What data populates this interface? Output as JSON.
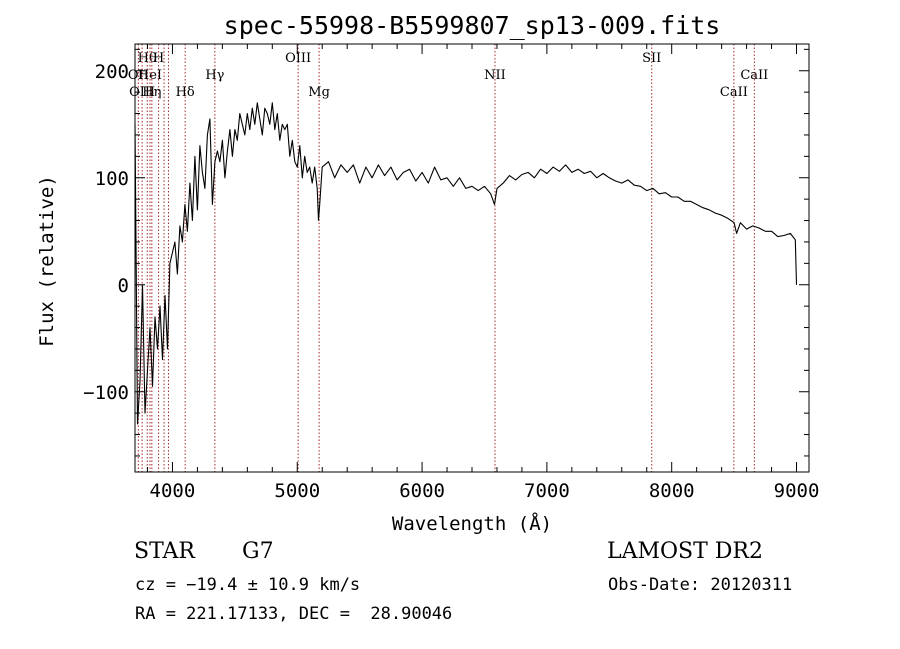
{
  "chart_data": {
    "type": "line",
    "title": "spec-55998-B5599807_sp13-009.fits",
    "xlabel": "Wavelength (Å)",
    "ylabel": "Flux (relative)",
    "xlim": [
      3700,
      9100
    ],
    "ylim": [
      -175,
      225
    ],
    "xticks": [
      4000,
      5000,
      6000,
      7000,
      8000,
      9000
    ],
    "yticks": [
      -100,
      0,
      100,
      200
    ],
    "grid": false,
    "line_color": "#000000",
    "marker_color": "#a52a2a",
    "spectrum": [
      [
        3700,
        150
      ],
      [
        3720,
        -130
      ],
      [
        3740,
        -90
      ],
      [
        3760,
        0
      ],
      [
        3780,
        -120
      ],
      [
        3800,
        -80
      ],
      [
        3820,
        -40
      ],
      [
        3840,
        -95
      ],
      [
        3860,
        -30
      ],
      [
        3880,
        -60
      ],
      [
        3900,
        -20
      ],
      [
        3920,
        -70
      ],
      [
        3940,
        -10
      ],
      [
        3960,
        -60
      ],
      [
        3980,
        20
      ],
      [
        4000,
        30
      ],
      [
        4020,
        40
      ],
      [
        4040,
        10
      ],
      [
        4060,
        55
      ],
      [
        4080,
        40
      ],
      [
        4100,
        75
      ],
      [
        4120,
        50
      ],
      [
        4140,
        95
      ],
      [
        4160,
        60
      ],
      [
        4180,
        120
      ],
      [
        4200,
        70
      ],
      [
        4220,
        130
      ],
      [
        4240,
        105
      ],
      [
        4260,
        90
      ],
      [
        4280,
        140
      ],
      [
        4300,
        155
      ],
      [
        4320,
        75
      ],
      [
        4340,
        115
      ],
      [
        4360,
        125
      ],
      [
        4380,
        115
      ],
      [
        4400,
        135
      ],
      [
        4420,
        100
      ],
      [
        4440,
        125
      ],
      [
        4460,
        145
      ],
      [
        4480,
        120
      ],
      [
        4500,
        145
      ],
      [
        4520,
        135
      ],
      [
        4540,
        160
      ],
      [
        4560,
        150
      ],
      [
        4580,
        140
      ],
      [
        4600,
        160
      ],
      [
        4620,
        145
      ],
      [
        4640,
        165
      ],
      [
        4660,
        150
      ],
      [
        4680,
        170
      ],
      [
        4700,
        155
      ],
      [
        4720,
        140
      ],
      [
        4740,
        165
      ],
      [
        4760,
        160
      ],
      [
        4780,
        150
      ],
      [
        4800,
        170
      ],
      [
        4820,
        145
      ],
      [
        4840,
        160
      ],
      [
        4860,
        135
      ],
      [
        4880,
        150
      ],
      [
        4900,
        145
      ],
      [
        4920,
        150
      ],
      [
        4940,
        120
      ],
      [
        4960,
        135
      ],
      [
        4980,
        115
      ],
      [
        5000,
        110
      ],
      [
        5020,
        130
      ],
      [
        5040,
        100
      ],
      [
        5060,
        120
      ],
      [
        5080,
        105
      ],
      [
        5100,
        110
      ],
      [
        5120,
        95
      ],
      [
        5140,
        110
      ],
      [
        5160,
        90
      ],
      [
        5170,
        60
      ],
      [
        5180,
        75
      ],
      [
        5200,
        110
      ],
      [
        5250,
        115
      ],
      [
        5300,
        100
      ],
      [
        5350,
        112
      ],
      [
        5400,
        105
      ],
      [
        5450,
        112
      ],
      [
        5500,
        95
      ],
      [
        5550,
        110
      ],
      [
        5600,
        100
      ],
      [
        5650,
        112
      ],
      [
        5700,
        102
      ],
      [
        5750,
        110
      ],
      [
        5800,
        98
      ],
      [
        5850,
        105
      ],
      [
        5900,
        108
      ],
      [
        5950,
        97
      ],
      [
        6000,
        105
      ],
      [
        6050,
        95
      ],
      [
        6100,
        110
      ],
      [
        6150,
        98
      ],
      [
        6200,
        100
      ],
      [
        6250,
        92
      ],
      [
        6300,
        100
      ],
      [
        6350,
        90
      ],
      [
        6400,
        92
      ],
      [
        6450,
        88
      ],
      [
        6500,
        92
      ],
      [
        6550,
        85
      ],
      [
        6580,
        75
      ],
      [
        6600,
        90
      ],
      [
        6650,
        95
      ],
      [
        6700,
        102
      ],
      [
        6750,
        98
      ],
      [
        6800,
        103
      ],
      [
        6850,
        105
      ],
      [
        6900,
        100
      ],
      [
        6950,
        108
      ],
      [
        7000,
        104
      ],
      [
        7050,
        110
      ],
      [
        7100,
        106
      ],
      [
        7150,
        112
      ],
      [
        7200,
        105
      ],
      [
        7250,
        108
      ],
      [
        7300,
        104
      ],
      [
        7350,
        106
      ],
      [
        7400,
        100
      ],
      [
        7450,
        104
      ],
      [
        7500,
        100
      ],
      [
        7550,
        97
      ],
      [
        7600,
        95
      ],
      [
        7650,
        98
      ],
      [
        7700,
        93
      ],
      [
        7750,
        92
      ],
      [
        7800,
        88
      ],
      [
        7850,
        90
      ],
      [
        7900,
        85
      ],
      [
        7950,
        86
      ],
      [
        8000,
        82
      ],
      [
        8050,
        82
      ],
      [
        8100,
        78
      ],
      [
        8150,
        78
      ],
      [
        8200,
        75
      ],
      [
        8250,
        72
      ],
      [
        8300,
        70
      ],
      [
        8350,
        67
      ],
      [
        8400,
        65
      ],
      [
        8450,
        62
      ],
      [
        8500,
        58
      ],
      [
        8520,
        48
      ],
      [
        8550,
        58
      ],
      [
        8600,
        52
      ],
      [
        8650,
        55
      ],
      [
        8700,
        53
      ],
      [
        8750,
        50
      ],
      [
        8800,
        50
      ],
      [
        8850,
        45
      ],
      [
        8900,
        46
      ],
      [
        8950,
        48
      ],
      [
        8990,
        42
      ],
      [
        9000,
        0
      ]
    ],
    "line_markers": [
      {
        "label": "Hθ",
        "wavelength": 3798,
        "row": 1
      },
      {
        "label": "H",
        "wavelength": 3889,
        "row": 1
      },
      {
        "label": "OII",
        "wavelength": 3727,
        "row": 2
      },
      {
        "label": "HeI",
        "wavelength": 3820,
        "row": 2
      },
      {
        "label": "Hγ",
        "wavelength": 4340,
        "row": 2
      },
      {
        "label": "OIII",
        "wavelength": 3757,
        "row": 3
      },
      {
        "label": "Hη",
        "wavelength": 3835,
        "row": 3
      },
      {
        "label": "Hδ",
        "wavelength": 4102,
        "row": 3
      },
      {
        "label": "OIII",
        "wavelength": 5007,
        "row": 1
      },
      {
        "label": "Mg",
        "wavelength": 5175,
        "row": 3
      },
      {
        "label": "NII",
        "wavelength": 6584,
        "row": 2
      },
      {
        "label": "SII",
        "wavelength": 7840,
        "row": 1
      },
      {
        "label": "CaII",
        "wavelength": 8498,
        "row": 3
      },
      {
        "label": "CaII",
        "wavelength": 8662,
        "row": 2
      },
      {
        "label": "",
        "wavelength": 3933,
        "row": 0
      },
      {
        "label": "",
        "wavelength": 3968,
        "row": 0
      }
    ]
  },
  "info": {
    "object_type": "STAR",
    "subclass": "G7",
    "survey": "LAMOST DR2",
    "cz": "cz = −19.4 ± 10.9 km/s",
    "obs_date": "Obs-Date: 20120311",
    "coords": "RA = 221.17133, DEC =  28.90046"
  }
}
